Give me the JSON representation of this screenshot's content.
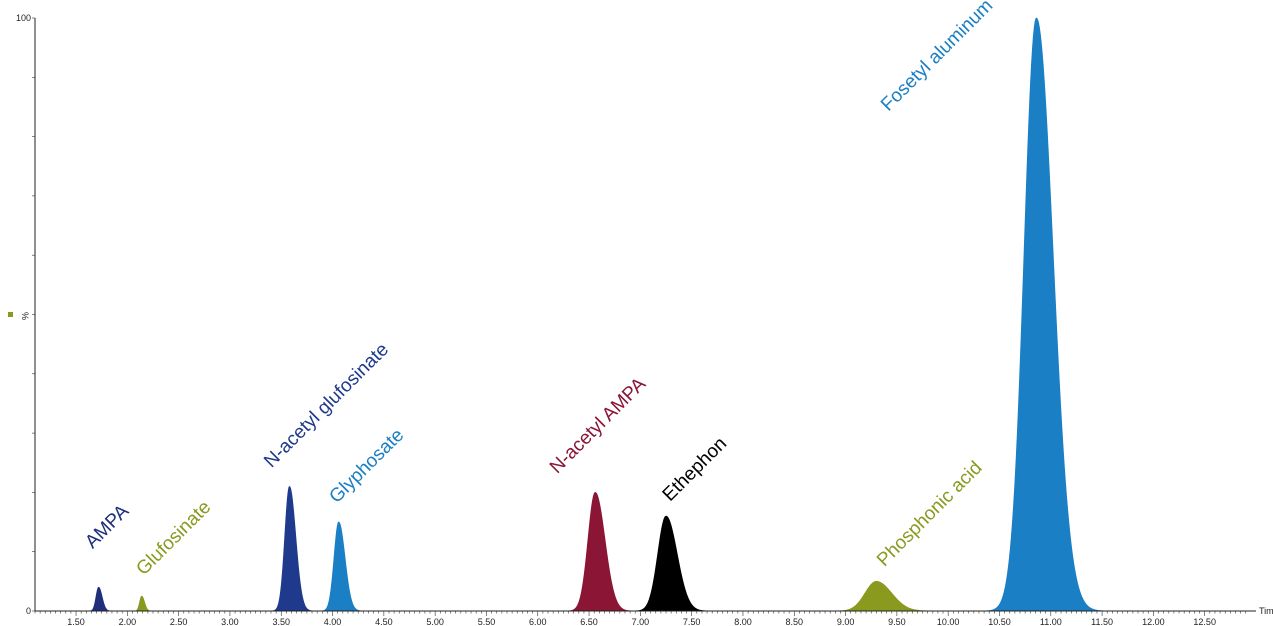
{
  "chart_data": {
    "type": "area",
    "title": "",
    "xlabel": "Tim",
    "ylabel": "%",
    "xlim": [
      1.1,
      13.0
    ],
    "ylim": [
      0,
      100
    ],
    "x_ticks": [
      "1.50",
      "2.00",
      "2.50",
      "3.00",
      "3.50",
      "4.00",
      "4.50",
      "5.00",
      "5.50",
      "6.00",
      "6.50",
      "7.00",
      "7.50",
      "8.00",
      "8.50",
      "9.00",
      "9.50",
      "10.00",
      "10.50",
      "11.00",
      "11.50",
      "12.00",
      "12.50"
    ],
    "y_ticks": [
      "0",
      "100"
    ],
    "grid": false,
    "series": [
      {
        "name": "AMPA",
        "color": "#1f2f7a",
        "rt": 1.72,
        "height": 4,
        "width": 0.025
      },
      {
        "name": "Glufosinate",
        "color": "#8a9a1f",
        "rt": 2.14,
        "height": 2.5,
        "width": 0.02
      },
      {
        "name": "N-acetyl glufosinate",
        "color": "#1f3a8c",
        "rt": 3.58,
        "height": 21,
        "width": 0.045
      },
      {
        "name": "Glyphosate",
        "color": "#1a7fc4",
        "rt": 4.06,
        "height": 15,
        "width": 0.045
      },
      {
        "name": "N-acetyl AMPA",
        "color": "#8b1535",
        "rt": 6.56,
        "height": 20,
        "width": 0.07
      },
      {
        "name": "Ethephon",
        "color": "#000000",
        "rt": 7.25,
        "height": 16,
        "width": 0.08
      },
      {
        "name": "Phosphonic acid",
        "color": "#8a9a1f",
        "rt": 9.3,
        "height": 5,
        "width": 0.11
      },
      {
        "name": "Fosetyl aluminum",
        "color": "#1a7fc4",
        "rt": 10.86,
        "height": 100,
        "width": 0.12
      }
    ],
    "legend_marker_color": "#8a9a1f"
  }
}
